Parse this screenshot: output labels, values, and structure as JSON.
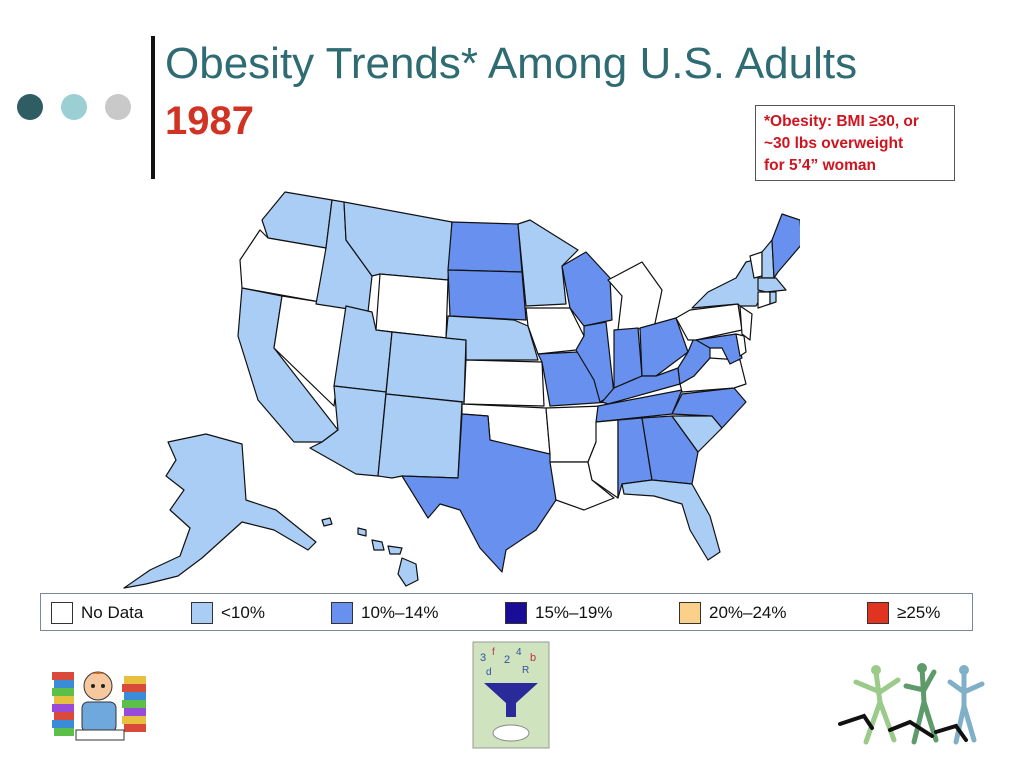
{
  "slide": {
    "title": "Obesity Trends* Among U.S. Adults",
    "year": "1987",
    "footnote": "*Obesity: BMI ≥30, or\n~30 lbs overweight\nfor 5’4” woman"
  },
  "legend": [
    {
      "key": "no_data",
      "label": "No Data",
      "color": "#ffffff"
    },
    {
      "key": "lt10",
      "label": "<10%",
      "color": "#a9cdf5"
    },
    {
      "key": "10_14",
      "label": "10%–14%",
      "color": "#6890ee"
    },
    {
      "key": "15_19",
      "label": "15%–19%",
      "color": "#1a0c96"
    },
    {
      "key": "20_24",
      "label": "20%–24%",
      "color": "#fbd08a"
    },
    {
      "key": "ge25",
      "label": "≥25%",
      "color": "#e03420"
    }
  ],
  "states": {
    "no_data": [
      "OR",
      "NV",
      "WY",
      "KS",
      "OK",
      "IA",
      "AR",
      "LA",
      "MS",
      "MI",
      "PA",
      "VA",
      "NJ",
      "VT",
      "CT",
      "DE"
    ],
    "lt10": [
      "WA",
      "ID",
      "MT",
      "CA",
      "UT",
      "AZ",
      "CO",
      "NM",
      "NE",
      "MN",
      "SC",
      "FL",
      "NY",
      "NH",
      "MA",
      "RI",
      "AK",
      "HI"
    ],
    "10_14": [
      "ND",
      "SD",
      "TX",
      "MO",
      "WI",
      "IL",
      "IN",
      "OH",
      "KY",
      "TN",
      "AL",
      "GA",
      "NC",
      "WV",
      "MD",
      "ME"
    ]
  },
  "colors": {
    "title": "#2e6b72",
    "year": "#d03224",
    "footnote": "#d0141e",
    "state_border": "#111111"
  },
  "clipart": [
    "student-with-books-clipart",
    "number-funnel-clipart",
    "dancers-silhouette-clipart"
  ]
}
